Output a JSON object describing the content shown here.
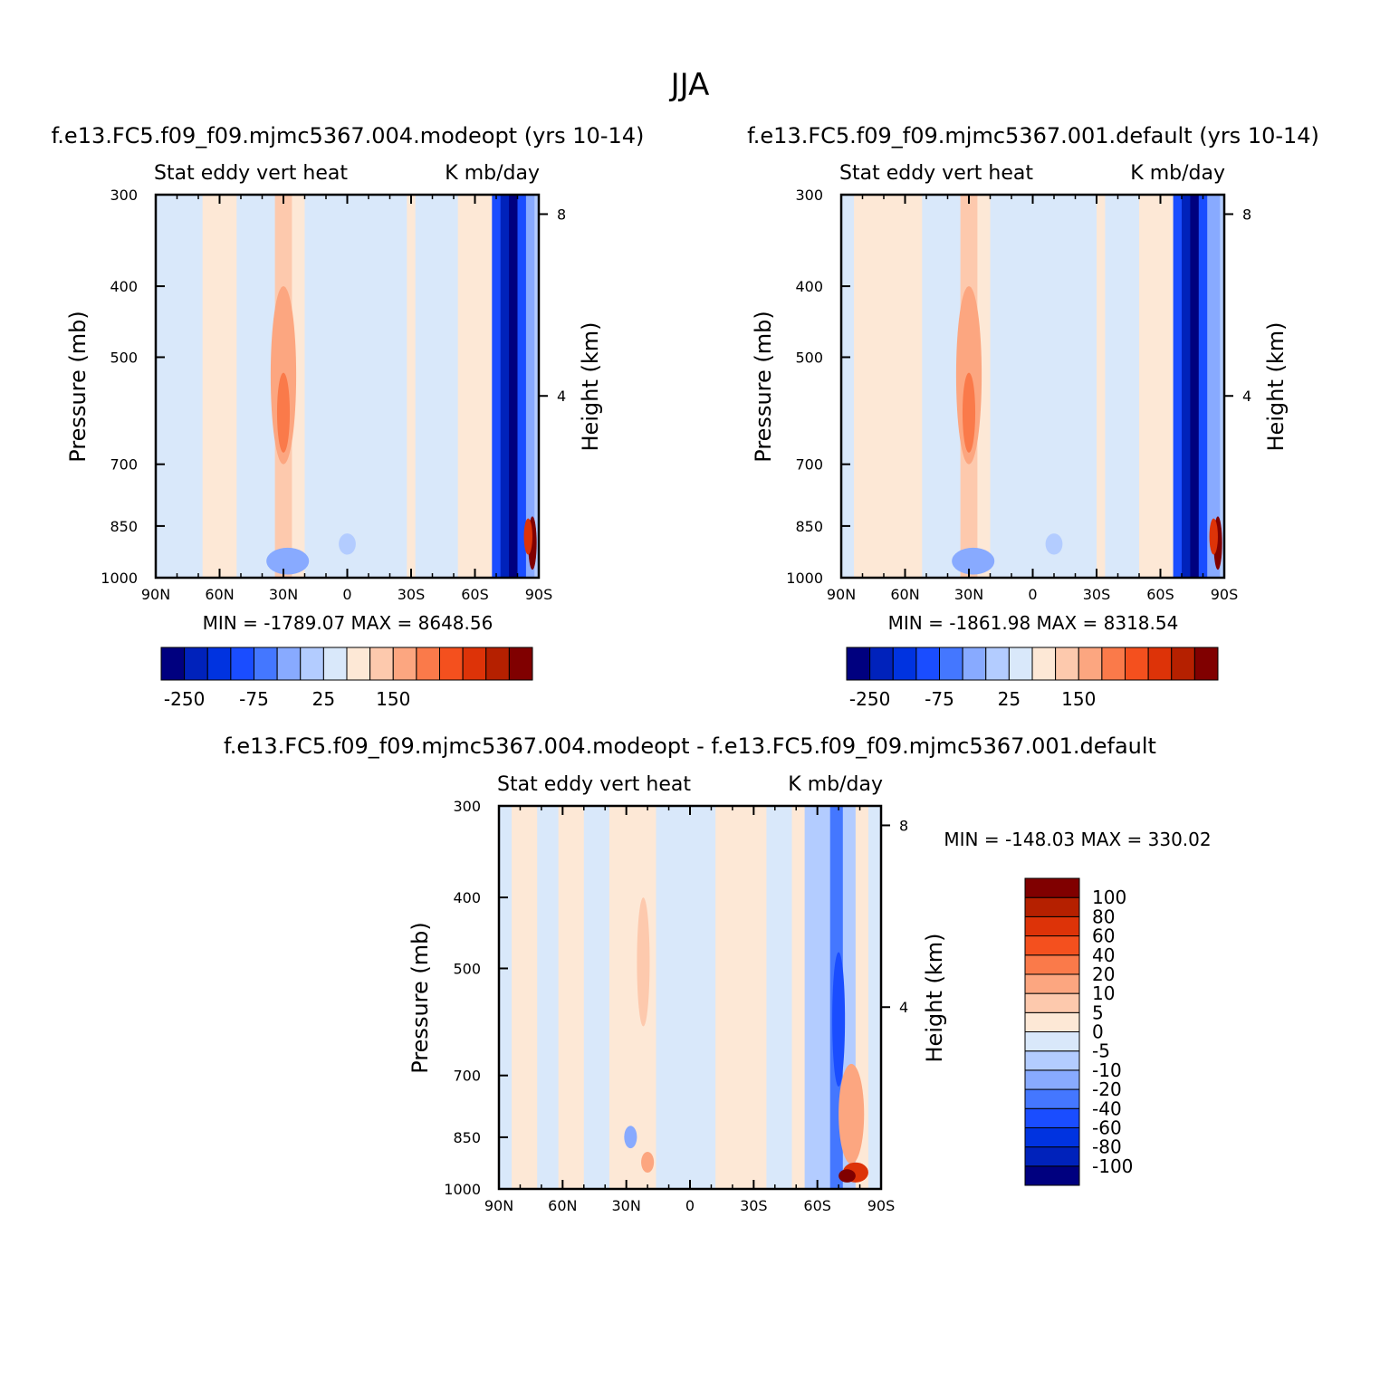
{
  "main_title": "JJA",
  "colors": {
    "palette_top": [
      "#00007f",
      "#0022bb",
      "#0033e0",
      "#1a4dff",
      "#4477ff",
      "#88aaff",
      "#b3ccff",
      "#d9e8fa",
      "#fde8d6",
      "#fdc9ad",
      "#fca680",
      "#fa7a4a",
      "#f4501e",
      "#dd3308",
      "#b52000",
      "#800000"
    ],
    "palette_diff": [
      "#00007f",
      "#0022bb",
      "#0033e0",
      "#1a4dff",
      "#4477ff",
      "#88aaff",
      "#b3ccff",
      "#d9e8fa",
      "#fde8d6",
      "#fdc9ad",
      "#fca680",
      "#fa7a4a",
      "#f4501e",
      "#dd3308",
      "#b52000",
      "#800000"
    ]
  },
  "chart_data": [
    {
      "type": "heatmap",
      "title": "f.e13.FC5.f09_f09.mjmc5367.004.modeopt (yrs 10-14)",
      "left_string": "Stat eddy vert heat",
      "right_string": "K mb/day",
      "xlabel": "",
      "ylabel": "Pressure (mb)",
      "ylabel_right": "Height (km)",
      "x_ticks": [
        "90N",
        "60N",
        "30N",
        "0",
        "30S",
        "60S",
        "90S"
      ],
      "y_ticks": [
        "300",
        "400",
        "500",
        "700",
        "850",
        "1000"
      ],
      "y_right_ticks": [
        "8",
        "4"
      ],
      "xlim": [
        90,
        -90
      ],
      "ylim_pressure": [
        1000,
        300
      ],
      "stats": "MIN = -1789.07   MAX = 8648.56",
      "min": -1789.07,
      "max": 8648.56,
      "colorbar_labels": [
        "-250",
        "-75",
        "25",
        "150"
      ],
      "field": {
        "lat_bands": [
          {
            "from": 90,
            "to": 84,
            "level": 7
          },
          {
            "from": 84,
            "to": 68,
            "level": 7
          },
          {
            "from": 68,
            "to": 52,
            "level": 8
          },
          {
            "from": 52,
            "to": 34,
            "level": 7
          },
          {
            "from": 34,
            "to": 26,
            "level": 9
          },
          {
            "from": 26,
            "to": 20,
            "level": 8
          },
          {
            "from": 20,
            "to": -28,
            "level": 7
          },
          {
            "from": -28,
            "to": -32,
            "level": 8
          },
          {
            "from": -32,
            "to": -52,
            "level": 7
          },
          {
            "from": -52,
            "to": -68,
            "level": 8
          },
          {
            "from": -68,
            "to": -72,
            "level": 3
          },
          {
            "from": -72,
            "to": -76,
            "level": 1
          },
          {
            "from": -76,
            "to": -80,
            "level": 0
          },
          {
            "from": -80,
            "to": -84,
            "level": 3
          },
          {
            "from": -84,
            "to": -88,
            "level": 5
          },
          {
            "from": -88,
            "to": -90,
            "level": 6
          }
        ],
        "patches": [
          {
            "lat": 30,
            "p": 550,
            "dlat": 6,
            "dp": 300,
            "level": 10
          },
          {
            "lat": 30,
            "p": 600,
            "dlat": 3,
            "dp": 150,
            "level": 11
          },
          {
            "lat": 28,
            "p": 950,
            "dlat": 10,
            "dp": 80,
            "level": 5
          },
          {
            "lat": 0,
            "p": 900,
            "dlat": 4,
            "dp": 60,
            "level": 6
          },
          {
            "lat": -87,
            "p": 900,
            "dlat": 2,
            "dp": 150,
            "level": 15
          },
          {
            "lat": -85,
            "p": 880,
            "dlat": 2,
            "dp": 100,
            "level": 13
          }
        ]
      }
    },
    {
      "type": "heatmap",
      "title": "f.e13.FC5.f09_f09.mjmc5367.001.default (yrs 10-14)",
      "left_string": "Stat eddy vert heat",
      "right_string": "K mb/day",
      "xlabel": "",
      "ylabel": "Pressure (mb)",
      "ylabel_right": "Height (km)",
      "x_ticks": [
        "90N",
        "60N",
        "30N",
        "0",
        "30S",
        "60S",
        "90S"
      ],
      "y_ticks": [
        "300",
        "400",
        "500",
        "700",
        "850",
        "1000"
      ],
      "y_right_ticks": [
        "8",
        "4"
      ],
      "xlim": [
        90,
        -90
      ],
      "ylim_pressure": [
        1000,
        300
      ],
      "stats": "MIN = -1861.98   MAX = 8318.54",
      "min": -1861.98,
      "max": 8318.54,
      "colorbar_labels": [
        "-250",
        "-75",
        "25",
        "150"
      ],
      "field": {
        "lat_bands": [
          {
            "from": 90,
            "to": 84,
            "level": 7
          },
          {
            "from": 84,
            "to": 70,
            "level": 8
          },
          {
            "from": 70,
            "to": 52,
            "level": 8
          },
          {
            "from": 52,
            "to": 34,
            "level": 7
          },
          {
            "from": 34,
            "to": 26,
            "level": 9
          },
          {
            "from": 26,
            "to": 20,
            "level": 8
          },
          {
            "from": 20,
            "to": -30,
            "level": 7
          },
          {
            "from": -30,
            "to": -34,
            "level": 8
          },
          {
            "from": -34,
            "to": -50,
            "level": 7
          },
          {
            "from": -50,
            "to": -66,
            "level": 8
          },
          {
            "from": -66,
            "to": -70,
            "level": 3
          },
          {
            "from": -70,
            "to": -74,
            "level": 1
          },
          {
            "from": -74,
            "to": -78,
            "level": 0
          },
          {
            "from": -78,
            "to": -82,
            "level": 3
          },
          {
            "from": -82,
            "to": -88,
            "level": 5
          },
          {
            "from": -88,
            "to": -90,
            "level": 6
          }
        ],
        "patches": [
          {
            "lat": 30,
            "p": 550,
            "dlat": 6,
            "dp": 300,
            "level": 10
          },
          {
            "lat": 30,
            "p": 600,
            "dlat": 3,
            "dp": 150,
            "level": 11
          },
          {
            "lat": 28,
            "p": 950,
            "dlat": 10,
            "dp": 80,
            "level": 5
          },
          {
            "lat": -10,
            "p": 900,
            "dlat": 4,
            "dp": 60,
            "level": 6
          },
          {
            "lat": -87,
            "p": 900,
            "dlat": 2,
            "dp": 150,
            "level": 15
          },
          {
            "lat": -85,
            "p": 880,
            "dlat": 2,
            "dp": 100,
            "level": 13
          }
        ]
      }
    },
    {
      "type": "heatmap",
      "title": "f.e13.FC5.f09_f09.mjmc5367.004.modeopt - f.e13.FC5.f09_f09.mjmc5367.001.default",
      "left_string": "Stat eddy vert heat",
      "right_string": "K mb/day",
      "xlabel": "",
      "ylabel": "Pressure (mb)",
      "ylabel_right": "Height (km)",
      "x_ticks": [
        "90N",
        "60N",
        "30N",
        "0",
        "30S",
        "60S",
        "90S"
      ],
      "y_ticks": [
        "300",
        "400",
        "500",
        "700",
        "850",
        "1000"
      ],
      "y_right_ticks": [
        "8",
        "4"
      ],
      "xlim": [
        90,
        -90
      ],
      "ylim_pressure": [
        1000,
        300
      ],
      "stats": "MIN = -148.03   MAX = 330.02",
      "min": -148.03,
      "max": 330.02,
      "colorbar_labels": [
        "-100",
        "-80",
        "-60",
        "-40",
        "-20",
        "-10",
        "-5",
        "0",
        "5",
        "10",
        "20",
        "40",
        "60",
        "80",
        "100"
      ],
      "field": {
        "lat_bands": [
          {
            "from": 90,
            "to": 84,
            "level": 7
          },
          {
            "from": 84,
            "to": 72,
            "level": 8
          },
          {
            "from": 72,
            "to": 62,
            "level": 7
          },
          {
            "from": 62,
            "to": 50,
            "level": 8
          },
          {
            "from": 50,
            "to": 38,
            "level": 7
          },
          {
            "from": 38,
            "to": 16,
            "level": 8
          },
          {
            "from": 16,
            "to": 4,
            "level": 7
          },
          {
            "from": 4,
            "to": -12,
            "level": 7
          },
          {
            "from": -12,
            "to": -36,
            "level": 8
          },
          {
            "from": -36,
            "to": -48,
            "level": 7
          },
          {
            "from": -48,
            "to": -54,
            "level": 8
          },
          {
            "from": -54,
            "to": -66,
            "level": 6
          },
          {
            "from": -66,
            "to": -72,
            "level": 4
          },
          {
            "from": -72,
            "to": -78,
            "level": 6
          },
          {
            "from": -78,
            "to": -84,
            "level": 8
          },
          {
            "from": -84,
            "to": -90,
            "level": 7
          }
        ],
        "patches": [
          {
            "lat": 22,
            "p": 500,
            "dlat": 3,
            "dp": 200,
            "level": 9
          },
          {
            "lat": 20,
            "p": 920,
            "dlat": 3,
            "dp": 60,
            "level": 10
          },
          {
            "lat": 28,
            "p": 850,
            "dlat": 3,
            "dp": 60,
            "level": 5
          },
          {
            "lat": -76,
            "p": 800,
            "dlat": 6,
            "dp": 250,
            "level": 10
          },
          {
            "lat": -78,
            "p": 950,
            "dlat": 6,
            "dp": 60,
            "level": 13
          },
          {
            "lat": -74,
            "p": 960,
            "dlat": 4,
            "dp": 40,
            "level": 15
          },
          {
            "lat": -70,
            "p": 600,
            "dlat": 3,
            "dp": 250,
            "level": 3
          }
        ]
      }
    }
  ]
}
